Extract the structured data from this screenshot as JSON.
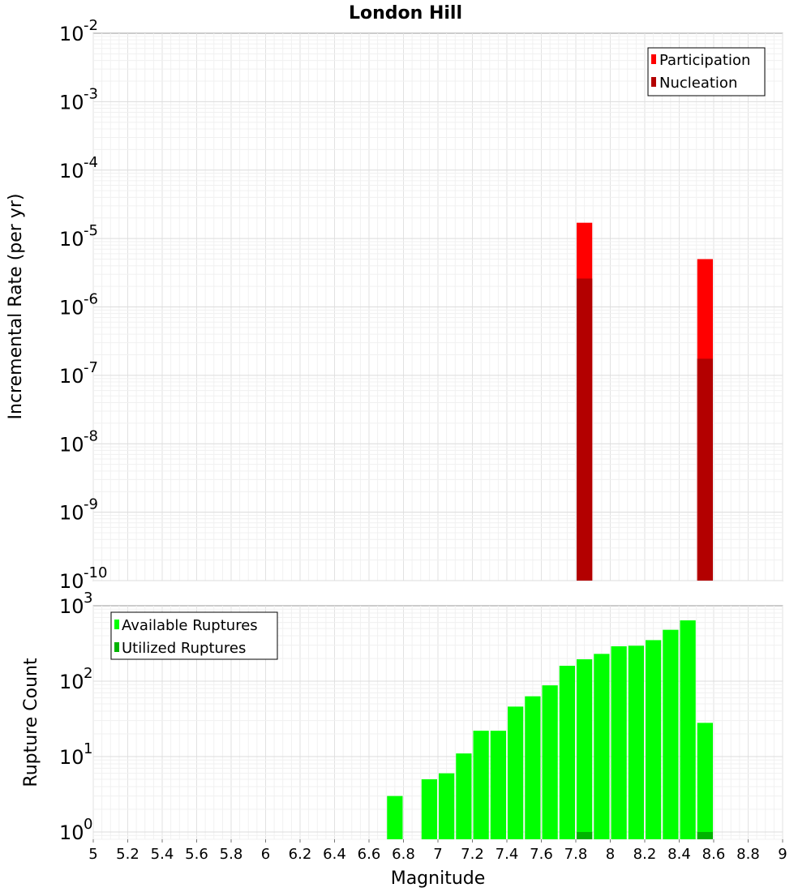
{
  "chart_data": [
    {
      "type": "bar",
      "title": "London Hill",
      "xlabel": "Magnitude",
      "ylabel": "Incremental Rate (per yr)",
      "xlim": [
        5,
        9
      ],
      "ylim": [
        1e-10,
        0.01
      ],
      "yscale": "log",
      "grid": true,
      "legend_position": "top-right",
      "series": [
        {
          "name": "Participation",
          "color": "#ff0000",
          "x": [
            7.85,
            8.55
          ],
          "values": [
            1.7e-05,
            5e-06
          ]
        },
        {
          "name": "Nucleation",
          "color": "#b30000",
          "x": [
            7.85,
            8.55
          ],
          "values": [
            2.6e-06,
            1.75e-07
          ]
        }
      ]
    },
    {
      "type": "bar",
      "xlabel": "Magnitude",
      "ylabel": "Rupture Count",
      "xlim": [
        5,
        9
      ],
      "ylim": [
        0.8,
        1000
      ],
      "yscale": "log",
      "grid": true,
      "legend_position": "top-left",
      "series": [
        {
          "name": "Available Ruptures",
          "color": "#00ff00",
          "x": [
            6.75,
            6.95,
            7.05,
            7.15,
            7.25,
            7.35,
            7.45,
            7.55,
            7.65,
            7.75,
            7.85,
            7.95,
            8.05,
            8.15,
            8.25,
            8.35,
            8.45,
            8.55
          ],
          "values": [
            3,
            5,
            6,
            11,
            22,
            22,
            46,
            63,
            88,
            160,
            195,
            230,
            290,
            295,
            350,
            480,
            640,
            28
          ]
        },
        {
          "name": "Utilized Ruptures",
          "color": "#00b300",
          "x": [
            7.85,
            8.55
          ],
          "values": [
            1,
            1
          ]
        }
      ]
    }
  ],
  "x_ticks": [
    "5",
    "5.2",
    "5.4",
    "5.6",
    "5.8",
    "6",
    "6.2",
    "6.4",
    "6.6",
    "6.8",
    "7",
    "7.2",
    "7.4",
    "7.6",
    "7.8",
    "8",
    "8.2",
    "8.4",
    "8.6",
    "8.8",
    "9"
  ],
  "top_y_exponents": [
    "-2",
    "-3",
    "-4",
    "-5",
    "-6",
    "-7",
    "-8",
    "-9",
    "-10"
  ],
  "bottom_y_exponents": [
    "3",
    "2",
    "1",
    "0"
  ]
}
